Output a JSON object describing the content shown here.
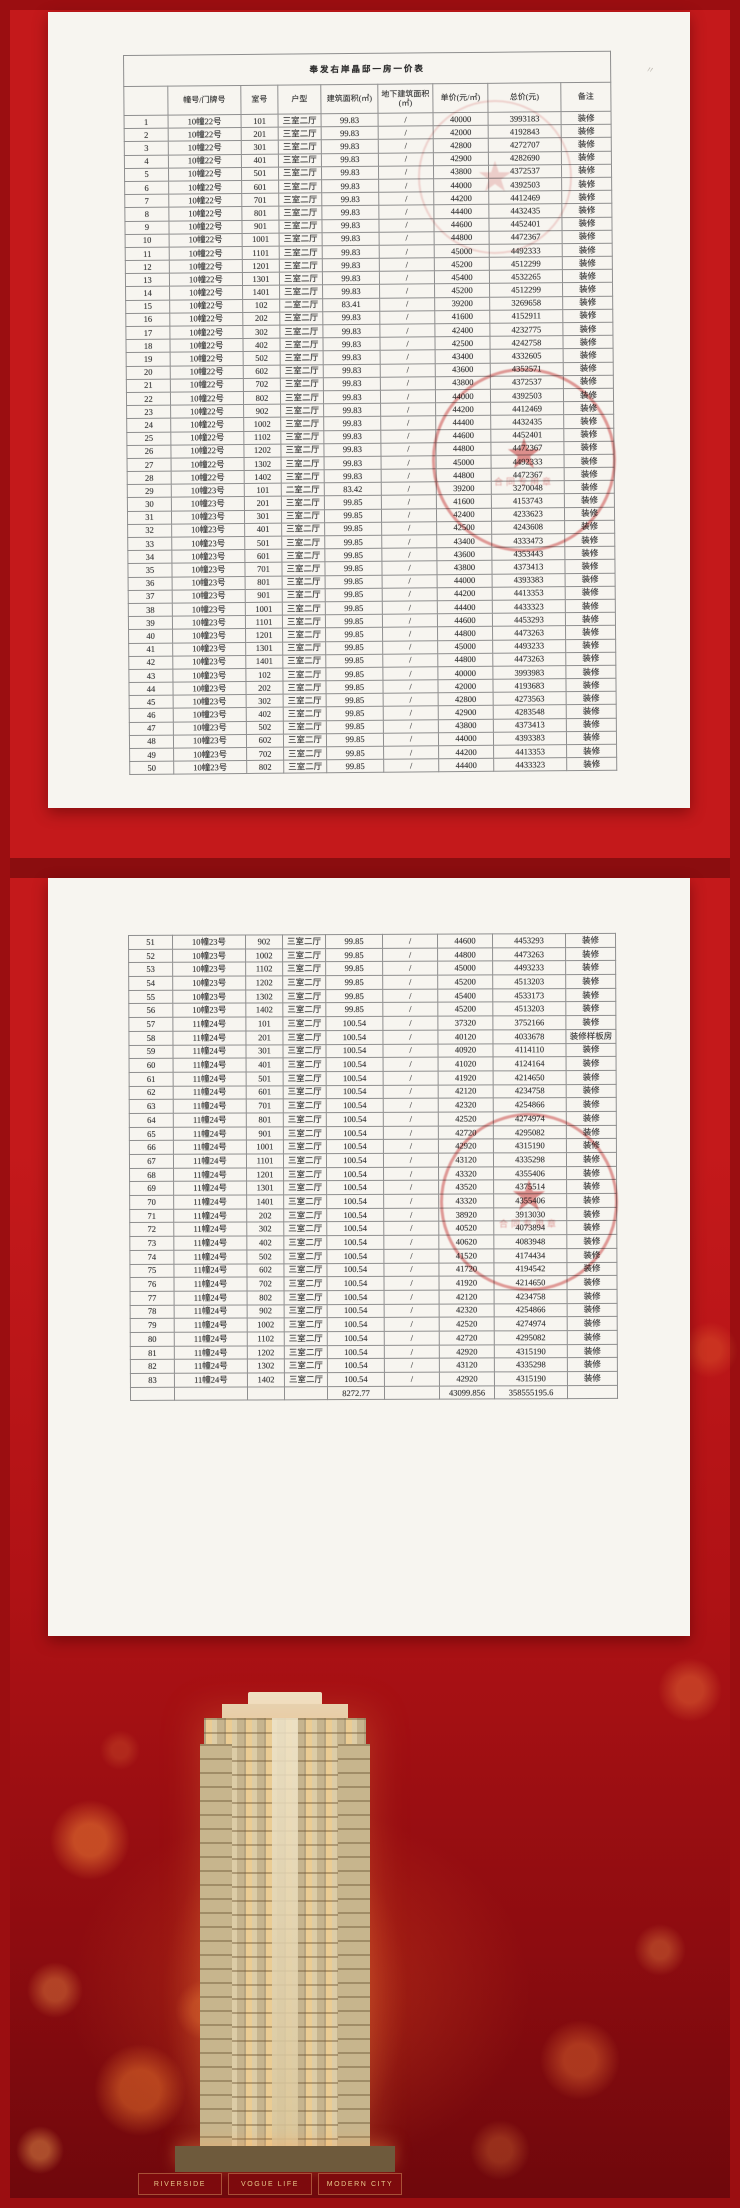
{
  "doc": {
    "title": "奉发右岸晶邸一房一价表",
    "columns": [
      "",
      "幢号/门牌号",
      "室号",
      "户型",
      "建筑面积(㎡)",
      "地下建筑面积(㎡)",
      "单价(元/㎡)",
      "总价(元)",
      "备注"
    ]
  },
  "pages": [
    {
      "rows": [
        [
          "1",
          "10幢22号",
          "101",
          "三室二厅",
          "99.83",
          "/",
          "40000",
          "3993183",
          "装修"
        ],
        [
          "2",
          "10幢22号",
          "201",
          "三室二厅",
          "99.83",
          "/",
          "42000",
          "4192843",
          "装修"
        ],
        [
          "3",
          "10幢22号",
          "301",
          "三室二厅",
          "99.83",
          "/",
          "42800",
          "4272707",
          "装修"
        ],
        [
          "4",
          "10幢22号",
          "401",
          "三室二厅",
          "99.83",
          "/",
          "42900",
          "4282690",
          "装修"
        ],
        [
          "5",
          "10幢22号",
          "501",
          "三室二厅",
          "99.83",
          "/",
          "43800",
          "4372537",
          "装修"
        ],
        [
          "6",
          "10幢22号",
          "601",
          "三室二厅",
          "99.83",
          "/",
          "44000",
          "4392503",
          "装修"
        ],
        [
          "7",
          "10幢22号",
          "701",
          "三室二厅",
          "99.83",
          "/",
          "44200",
          "4412469",
          "装修"
        ],
        [
          "8",
          "10幢22号",
          "801",
          "三室二厅",
          "99.83",
          "/",
          "44400",
          "4432435",
          "装修"
        ],
        [
          "9",
          "10幢22号",
          "901",
          "三室二厅",
          "99.83",
          "/",
          "44600",
          "4452401",
          "装修"
        ],
        [
          "10",
          "10幢22号",
          "1001",
          "三室二厅",
          "99.83",
          "/",
          "44800",
          "4472367",
          "装修"
        ],
        [
          "11",
          "10幢22号",
          "1101",
          "三室二厅",
          "99.83",
          "/",
          "45000",
          "4492333",
          "装修"
        ],
        [
          "12",
          "10幢22号",
          "1201",
          "三室二厅",
          "99.83",
          "/",
          "45200",
          "4512299",
          "装修"
        ],
        [
          "13",
          "10幢22号",
          "1301",
          "三室二厅",
          "99.83",
          "/",
          "45400",
          "4532265",
          "装修"
        ],
        [
          "14",
          "10幢22号",
          "1401",
          "三室二厅",
          "99.83",
          "/",
          "45200",
          "4512299",
          "装修"
        ],
        [
          "15",
          "10幢22号",
          "102",
          "二室二厅",
          "83.41",
          "/",
          "39200",
          "3269658",
          "装修"
        ],
        [
          "16",
          "10幢22号",
          "202",
          "三室二厅",
          "99.83",
          "/",
          "41600",
          "4152911",
          "装修"
        ],
        [
          "17",
          "10幢22号",
          "302",
          "三室二厅",
          "99.83",
          "/",
          "42400",
          "4232775",
          "装修"
        ],
        [
          "18",
          "10幢22号",
          "402",
          "三室二厅",
          "99.83",
          "/",
          "42500",
          "4242758",
          "装修"
        ],
        [
          "19",
          "10幢22号",
          "502",
          "三室二厅",
          "99.83",
          "/",
          "43400",
          "4332605",
          "装修"
        ],
        [
          "20",
          "10幢22号",
          "602",
          "三室二厅",
          "99.83",
          "/",
          "43600",
          "4352571",
          "装修"
        ],
        [
          "21",
          "10幢22号",
          "702",
          "三室二厅",
          "99.83",
          "/",
          "43800",
          "4372537",
          "装修"
        ],
        [
          "22",
          "10幢22号",
          "802",
          "三室二厅",
          "99.83",
          "/",
          "44000",
          "4392503",
          "装修"
        ],
        [
          "23",
          "10幢22号",
          "902",
          "三室二厅",
          "99.83",
          "/",
          "44200",
          "4412469",
          "装修"
        ],
        [
          "24",
          "10幢22号",
          "1002",
          "三室二厅",
          "99.83",
          "/",
          "44400",
          "4432435",
          "装修"
        ],
        [
          "25",
          "10幢22号",
          "1102",
          "三室二厅",
          "99.83",
          "/",
          "44600",
          "4452401",
          "装修"
        ],
        [
          "26",
          "10幢22号",
          "1202",
          "三室二厅",
          "99.83",
          "/",
          "44800",
          "4472367",
          "装修"
        ],
        [
          "27",
          "10幢22号",
          "1302",
          "三室二厅",
          "99.83",
          "/",
          "45000",
          "4492333",
          "装修"
        ],
        [
          "28",
          "10幢22号",
          "1402",
          "三室二厅",
          "99.83",
          "/",
          "44800",
          "4472367",
          "装修"
        ],
        [
          "29",
          "10幢23号",
          "101",
          "二室二厅",
          "83.42",
          "/",
          "39200",
          "3270048",
          "装修"
        ],
        [
          "30",
          "10幢23号",
          "201",
          "三室二厅",
          "99.85",
          "/",
          "41600",
          "4153743",
          "装修"
        ],
        [
          "31",
          "10幢23号",
          "301",
          "三室二厅",
          "99.85",
          "/",
          "42400",
          "4233623",
          "装修"
        ],
        [
          "32",
          "10幢23号",
          "401",
          "三室二厅",
          "99.85",
          "/",
          "42500",
          "4243608",
          "装修"
        ],
        [
          "33",
          "10幢23号",
          "501",
          "三室二厅",
          "99.85",
          "/",
          "43400",
          "4333473",
          "装修"
        ],
        [
          "34",
          "10幢23号",
          "601",
          "三室二厅",
          "99.85",
          "/",
          "43600",
          "4353443",
          "装修"
        ],
        [
          "35",
          "10幢23号",
          "701",
          "三室二厅",
          "99.85",
          "/",
          "43800",
          "4373413",
          "装修"
        ],
        [
          "36",
          "10幢23号",
          "801",
          "三室二厅",
          "99.85",
          "/",
          "44000",
          "4393383",
          "装修"
        ],
        [
          "37",
          "10幢23号",
          "901",
          "三室二厅",
          "99.85",
          "/",
          "44200",
          "4413353",
          "装修"
        ],
        [
          "38",
          "10幢23号",
          "1001",
          "三室二厅",
          "99.85",
          "/",
          "44400",
          "4433323",
          "装修"
        ],
        [
          "39",
          "10幢23号",
          "1101",
          "三室二厅",
          "99.85",
          "/",
          "44600",
          "4453293",
          "装修"
        ],
        [
          "40",
          "10幢23号",
          "1201",
          "三室二厅",
          "99.85",
          "/",
          "44800",
          "4473263",
          "装修"
        ],
        [
          "41",
          "10幢23号",
          "1301",
          "三室二厅",
          "99.85",
          "/",
          "45000",
          "4493233",
          "装修"
        ],
        [
          "42",
          "10幢23号",
          "1401",
          "三室二厅",
          "99.85",
          "/",
          "44800",
          "4473263",
          "装修"
        ],
        [
          "43",
          "10幢23号",
          "102",
          "三室二厅",
          "99.85",
          "/",
          "40000",
          "3993983",
          "装修"
        ],
        [
          "44",
          "10幢23号",
          "202",
          "三室二厅",
          "99.85",
          "/",
          "42000",
          "4193683",
          "装修"
        ],
        [
          "45",
          "10幢23号",
          "302",
          "三室二厅",
          "99.85",
          "/",
          "42800",
          "4273563",
          "装修"
        ],
        [
          "46",
          "10幢23号",
          "402",
          "三室二厅",
          "99.85",
          "/",
          "42900",
          "4283548",
          "装修"
        ],
        [
          "47",
          "10幢23号",
          "502",
          "三室二厅",
          "99.85",
          "/",
          "43800",
          "4373413",
          "装修"
        ],
        [
          "48",
          "10幢23号",
          "602",
          "三室二厅",
          "99.85",
          "/",
          "44000",
          "4393383",
          "装修"
        ],
        [
          "49",
          "10幢23号",
          "702",
          "三室二厅",
          "99.85",
          "/",
          "44200",
          "4413353",
          "装修"
        ],
        [
          "50",
          "10幢23号",
          "802",
          "三室二厅",
          "99.85",
          "/",
          "44400",
          "4433323",
          "装修"
        ]
      ]
    },
    {
      "rows": [
        [
          "51",
          "10幢23号",
          "902",
          "三室二厅",
          "99.85",
          "/",
          "44600",
          "4453293",
          "装修"
        ],
        [
          "52",
          "10幢23号",
          "1002",
          "三室二厅",
          "99.85",
          "/",
          "44800",
          "4473263",
          "装修"
        ],
        [
          "53",
          "10幢23号",
          "1102",
          "三室二厅",
          "99.85",
          "/",
          "45000",
          "4493233",
          "装修"
        ],
        [
          "54",
          "10幢23号",
          "1202",
          "三室二厅",
          "99.85",
          "/",
          "45200",
          "4513203",
          "装修"
        ],
        [
          "55",
          "10幢23号",
          "1302",
          "三室二厅",
          "99.85",
          "/",
          "45400",
          "4533173",
          "装修"
        ],
        [
          "56",
          "10幢23号",
          "1402",
          "三室二厅",
          "99.85",
          "/",
          "45200",
          "4513203",
          "装修"
        ],
        [
          "57",
          "11幢24号",
          "101",
          "三室二厅",
          "100.54",
          "/",
          "37320",
          "3752166",
          "装修"
        ],
        [
          "58",
          "11幢24号",
          "201",
          "三室二厅",
          "100.54",
          "/",
          "40120",
          "4033678",
          "装修样板房"
        ],
        [
          "59",
          "11幢24号",
          "301",
          "三室二厅",
          "100.54",
          "/",
          "40920",
          "4114110",
          "装修"
        ],
        [
          "60",
          "11幢24号",
          "401",
          "三室二厅",
          "100.54",
          "/",
          "41020",
          "4124164",
          "装修"
        ],
        [
          "61",
          "11幢24号",
          "501",
          "三室二厅",
          "100.54",
          "/",
          "41920",
          "4214650",
          "装修"
        ],
        [
          "62",
          "11幢24号",
          "601",
          "三室二厅",
          "100.54",
          "/",
          "42120",
          "4234758",
          "装修"
        ],
        [
          "63",
          "11幢24号",
          "701",
          "三室二厅",
          "100.54",
          "/",
          "42320",
          "4254866",
          "装修"
        ],
        [
          "64",
          "11幢24号",
          "801",
          "三室二厅",
          "100.54",
          "/",
          "42520",
          "4274974",
          "装修"
        ],
        [
          "65",
          "11幢24号",
          "901",
          "三室二厅",
          "100.54",
          "/",
          "42720",
          "4295082",
          "装修"
        ],
        [
          "66",
          "11幢24号",
          "1001",
          "三室二厅",
          "100.54",
          "/",
          "42920",
          "4315190",
          "装修"
        ],
        [
          "67",
          "11幢24号",
          "1101",
          "三室二厅",
          "100.54",
          "/",
          "43120",
          "4335298",
          "装修"
        ],
        [
          "68",
          "11幢24号",
          "1201",
          "三室二厅",
          "100.54",
          "/",
          "43320",
          "4355406",
          "装修"
        ],
        [
          "69",
          "11幢24号",
          "1301",
          "三室二厅",
          "100.54",
          "/",
          "43520",
          "4375514",
          "装修"
        ],
        [
          "70",
          "11幢24号",
          "1401",
          "三室二厅",
          "100.54",
          "/",
          "43320",
          "4355406",
          "装修"
        ],
        [
          "71",
          "11幢24号",
          "202",
          "三室二厅",
          "100.54",
          "/",
          "38920",
          "3913030",
          "装修"
        ],
        [
          "72",
          "11幢24号",
          "302",
          "三室二厅",
          "100.54",
          "/",
          "40520",
          "4073894",
          "装修"
        ],
        [
          "73",
          "11幢24号",
          "402",
          "三室二厅",
          "100.54",
          "/",
          "40620",
          "4083948",
          "装修"
        ],
        [
          "74",
          "11幢24号",
          "502",
          "三室二厅",
          "100.54",
          "/",
          "41520",
          "4174434",
          "装修"
        ],
        [
          "75",
          "11幢24号",
          "602",
          "三室二厅",
          "100.54",
          "/",
          "41720",
          "4194542",
          "装修"
        ],
        [
          "76",
          "11幢24号",
          "702",
          "三室二厅",
          "100.54",
          "/",
          "41920",
          "4214650",
          "装修"
        ],
        [
          "77",
          "11幢24号",
          "802",
          "三室二厅",
          "100.54",
          "/",
          "42120",
          "4234758",
          "装修"
        ],
        [
          "78",
          "11幢24号",
          "902",
          "三室二厅",
          "100.54",
          "/",
          "42320",
          "4254866",
          "装修"
        ],
        [
          "79",
          "11幢24号",
          "1002",
          "三室二厅",
          "100.54",
          "/",
          "42520",
          "4274974",
          "装修"
        ],
        [
          "80",
          "11幢24号",
          "1102",
          "三室二厅",
          "100.54",
          "/",
          "42720",
          "4295082",
          "装修"
        ],
        [
          "81",
          "11幢24号",
          "1202",
          "三室二厅",
          "100.54",
          "/",
          "42920",
          "4315190",
          "装修"
        ],
        [
          "82",
          "11幢24号",
          "1302",
          "三室二厅",
          "100.54",
          "/",
          "43120",
          "4335298",
          "装修"
        ],
        [
          "83",
          "11幢24号",
          "1402",
          "三室二厅",
          "100.54",
          "/",
          "42920",
          "4315190",
          "装修"
        ],
        [
          "",
          "",
          "",
          "",
          "8272.77",
          "",
          "43099.856",
          "358555195.6",
          ""
        ]
      ]
    }
  ],
  "seal": {
    "star": "★",
    "text": "合同专用章"
  },
  "footer": {
    "banners": [
      "RIVERSIDE",
      "VOGUE LIFE",
      "MODERN CITY"
    ]
  },
  "colors": {
    "background_red": "#c4191b",
    "frame_red": "#9b0e11",
    "banner_red": "#7d0a0d",
    "banner_gold": "#e8c98a",
    "seal_red": "#c62020",
    "page_white": "#f7f5f0"
  },
  "artifacts": {
    "corner_mark": "〃"
  }
}
